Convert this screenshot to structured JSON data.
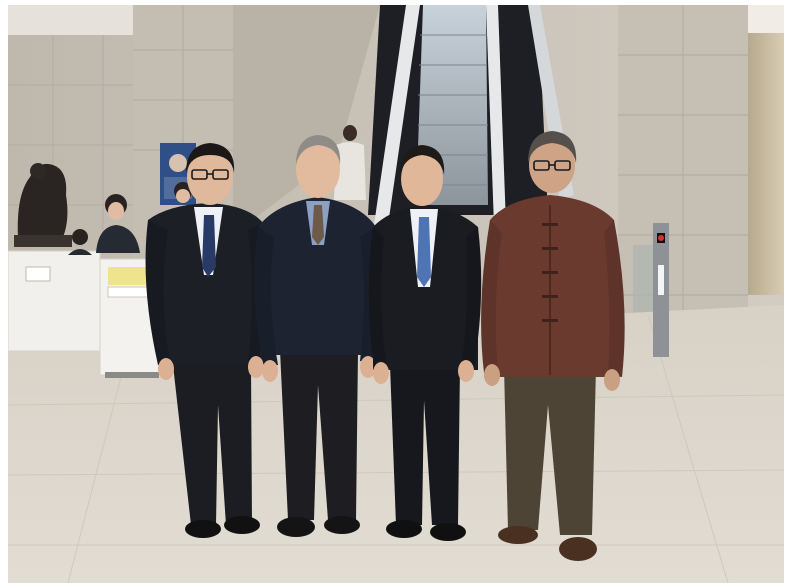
{
  "photo": {
    "colors": {
      "floor": "#d9d3c8",
      "wall_left": "#c9c3b9",
      "pillar": "#c8c2b8",
      "escalator_dark": "#1d1f24",
      "escalator_steps": "#9aa3ab",
      "handrail": "#e6e8ea",
      "suit_dark": "#1c1f26",
      "jacket_navy": "#1d2331",
      "jacket_brown": "#6a3a2e",
      "trousers_brown": "#4d4435",
      "skin": "#e0b89c",
      "desk": "#f2f0ec",
      "sign_yellow": "#efe38e",
      "post_grey": "#8e9196",
      "post_light": "#d8302c"
    },
    "icons": {
      "statue": "bronze-statue-icon",
      "poster": "poster-icon"
    }
  }
}
